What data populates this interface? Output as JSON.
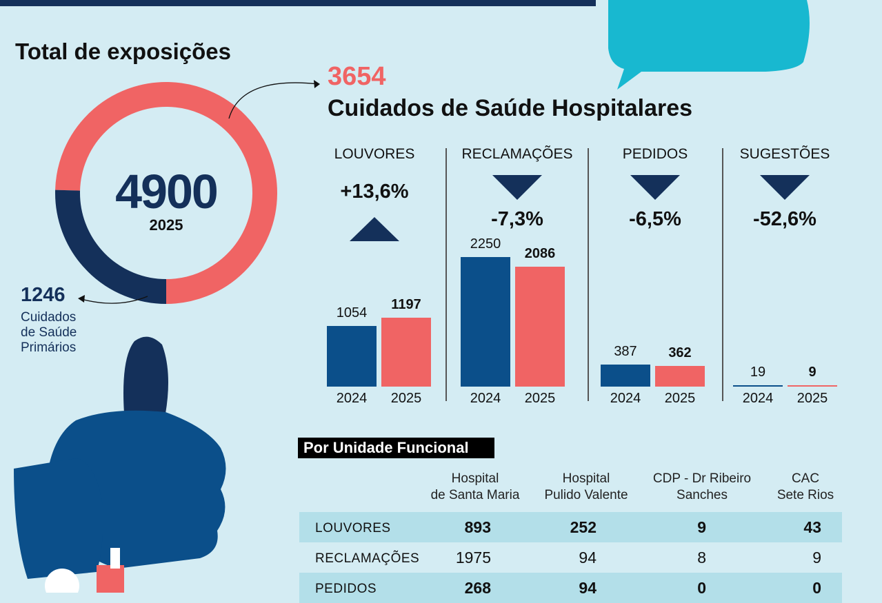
{
  "title": "Total de exposições",
  "total": {
    "value": "4900",
    "year": "2025"
  },
  "hospital": {
    "value": "3654",
    "label": "Cuidados de Saúde Hospitalares"
  },
  "primary": {
    "value": "1246",
    "label_lines": [
      "Cuidados",
      "de Saúde",
      "Primários"
    ]
  },
  "colors": {
    "navy": "#14305a",
    "blue": "#0b4f8a",
    "coral": "#f06464",
    "teal": "#18b8d0",
    "bg": "#d4ecf3"
  },
  "chart_data": {
    "type": "bar",
    "donut": {
      "segments": [
        {
          "name": "Cuidados de Saúde Hospitalares",
          "value": 3654
        },
        {
          "name": "Cuidados de Saúde Primários",
          "value": 1246
        }
      ],
      "total": 4900
    },
    "categories": [
      "LOUVORES",
      "RECLAMAÇÕES",
      "PEDIDOS",
      "SUGESTÕES"
    ],
    "x": [
      "2024",
      "2025"
    ],
    "series": [
      {
        "name": "2024",
        "values": [
          1054,
          2250,
          387,
          19
        ]
      },
      {
        "name": "2025",
        "values": [
          1197,
          2086,
          362,
          9
        ]
      }
    ],
    "changes": [
      "+13,6%",
      "-7,3%",
      "-6,5%",
      "-52,6%"
    ],
    "directions": [
      "up",
      "down",
      "down",
      "down"
    ],
    "labels": {
      "v2024": [
        "1054",
        "2250",
        "387",
        "19"
      ],
      "v2025": [
        "1197",
        "2086",
        "362",
        "9"
      ]
    }
  },
  "table": {
    "title": "Por Unidade Funcional",
    "columns": [
      [
        "Hospital",
        "de Santa Maria"
      ],
      [
        "Hospital",
        "Pulido Valente"
      ],
      [
        "CDP - Dr Ribeiro",
        "Sanches"
      ],
      [
        "CAC",
        "Sete Rios"
      ]
    ],
    "rows": [
      {
        "label": "LOUVORES",
        "values": [
          "893",
          "252",
          "9",
          "43"
        ]
      },
      {
        "label": "RECLAMAÇÕES",
        "values": [
          "1975",
          "94",
          "8",
          "9"
        ]
      },
      {
        "label": "PEDIDOS",
        "values": [
          "268",
          "94",
          "0",
          "0"
        ]
      }
    ]
  }
}
